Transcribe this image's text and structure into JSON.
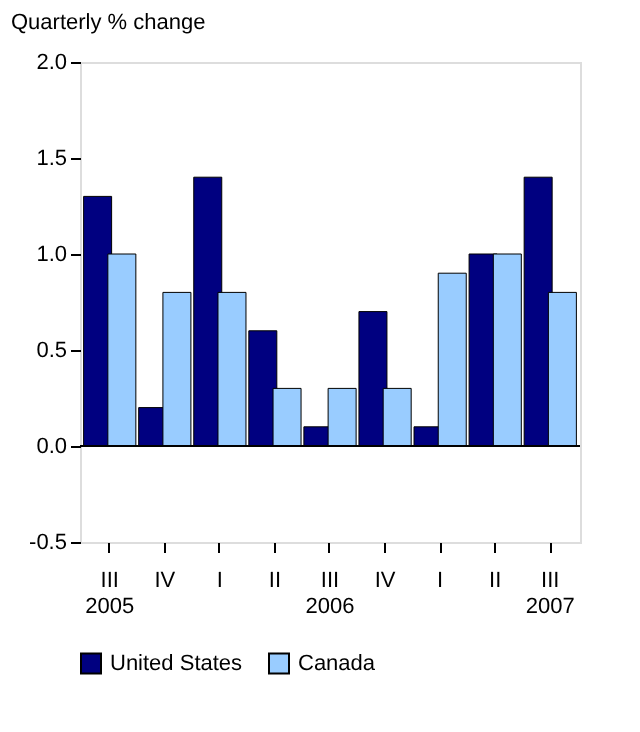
{
  "chart_data": {
    "type": "bar",
    "ylabel": "Quarterly % change",
    "categories": [
      "III\n2005",
      "IV",
      "I",
      "II",
      "III\n2006",
      "IV",
      "I",
      "II",
      "III\n2007"
    ],
    "series": [
      {
        "name": "United States",
        "color": "#000080",
        "values": [
          1.3,
          0.2,
          1.4,
          0.6,
          0.1,
          0.7,
          0.1,
          1.0,
          1.4
        ]
      },
      {
        "name": "Canada",
        "color": "#99ccff",
        "values": [
          1.0,
          0.8,
          0.8,
          0.3,
          0.3,
          0.3,
          0.9,
          1.0,
          0.8
        ]
      }
    ],
    "ylim": [
      -0.5,
      2.0
    ],
    "yticks": [
      {
        "value": -0.5,
        "label": "-0.5"
      },
      {
        "value": 0,
        "label": "0.0"
      },
      {
        "value": 0.5,
        "label": "0.5"
      },
      {
        "value": 1.0,
        "label": "1.0"
      },
      {
        "value": 1.5,
        "label": "1.5"
      },
      {
        "value": 2.0,
        "label": "2.0"
      }
    ],
    "ref_lines": [
      {
        "axis": "y",
        "value": 0,
        "color": "#000000"
      }
    ],
    "grid": false,
    "legend": "bottom"
  }
}
